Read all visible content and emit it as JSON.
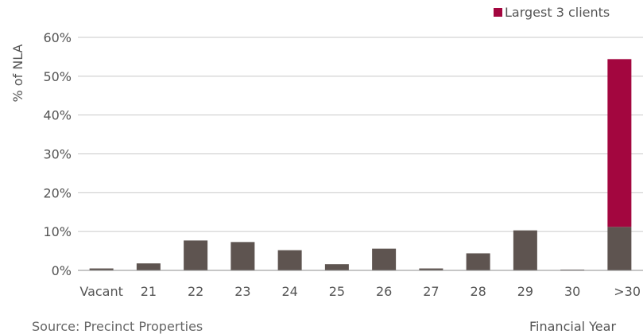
{
  "chart_data": {
    "type": "bar",
    "stacked": true,
    "categories": [
      "Vacant",
      "21",
      "22",
      "23",
      "24",
      "25",
      "26",
      "27",
      "28",
      "29",
      "30",
      ">30"
    ],
    "series": [
      {
        "values": [
          0.5,
          1.8,
          7.7,
          7.3,
          5.2,
          1.6,
          5.6,
          0.5,
          4.4,
          10.3,
          0.2,
          11.2
        ],
        "color": "#5e5450"
      },
      {
        "name": "Largest 3 clients",
        "values": [
          0,
          0,
          0,
          0,
          0,
          0,
          0,
          0,
          0,
          0,
          0,
          43.2
        ],
        "color": "#a3063f"
      }
    ],
    "ylabel": "% of NLA",
    "xlabel": "Financial Year",
    "ylim": [
      0,
      60
    ],
    "yticks": [
      "0%",
      "10%",
      "20%",
      "30%",
      "40%",
      "50%",
      "60%"
    ],
    "grid": true,
    "legend_position": "top-right"
  },
  "legend": {
    "label": "Largest 3 clients"
  },
  "axes": {
    "ylabel": "% of NLA",
    "xlabel": "Financial Year"
  },
  "source": "Source: Precinct Properties"
}
